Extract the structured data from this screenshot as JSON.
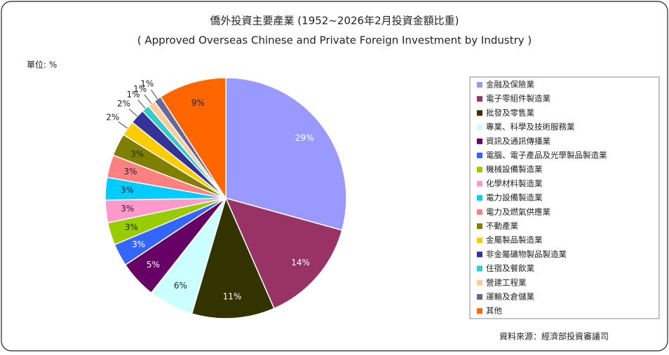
{
  "chart_data": {
    "type": "pie",
    "title": "僑外投資主要產業 (1952~2026年2月投資金額比重)",
    "subtitle": "( Approved Overseas Chinese and Private Foreign Investment by Industry )",
    "unit_label": "單位: %",
    "source": "資料來源：經濟部投資審議司",
    "categories": [
      "金融及保險業",
      "電子零組件製造業",
      "批發及零售業",
      "專業、科學及技術服務業",
      "資訊及通訊傳播業",
      "電腦、電子產品及光學製品製造業",
      "機械設備製造業",
      "化學材料製造業",
      "電力設備製造業",
      "電力及燃氣供應業",
      "不動產業",
      "金屬製品製造業",
      "非金屬礦物製品製造業",
      "住宿及餐飲業",
      "營建工程業",
      "運輸及倉儲業",
      "其他"
    ],
    "values": [
      29,
      14,
      11,
      6,
      5,
      3,
      3,
      3,
      3,
      3,
      3,
      2,
      2,
      1,
      1,
      1,
      9
    ],
    "value_labels": [
      "29%",
      "14%",
      "11%",
      "6%",
      "5%",
      "3%",
      "3%",
      "3%",
      "3%",
      "3%",
      "3%",
      "2%",
      "2%",
      "1%",
      "1%",
      "1%",
      "9%"
    ],
    "colors": [
      "#9999ff",
      "#993366",
      "#333300",
      "#ccffff",
      "#660066",
      "#3366ff",
      "#99cc00",
      "#ff99cc",
      "#00ccff",
      "#ff8080",
      "#808000",
      "#ffcc00",
      "#333399",
      "#33cccc",
      "#ffcc99",
      "#666699",
      "#ff6600"
    ],
    "legend": "right"
  }
}
